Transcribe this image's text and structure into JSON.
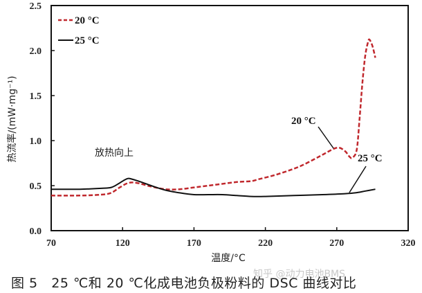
{
  "caption": "图 5   25 ℃和 20 ℃化成电池负极粉料的 DSC 曲线对比",
  "watermark": "知乎 @动力电池BMS",
  "chart_data": {
    "type": "line",
    "title": "",
    "xlabel": "温度/°C",
    "ylabel": "热流率/(mW·mg⁻¹)",
    "xlim": [
      70,
      320
    ],
    "ylim": [
      0,
      2.5
    ],
    "xticks": [
      70,
      120,
      170,
      220,
      270,
      320
    ],
    "yticks": [
      0.0,
      0.5,
      1.0,
      1.5,
      2.0,
      2.5
    ],
    "xtick_labels": [
      "70",
      "120",
      "170",
      "220",
      "270",
      "320"
    ],
    "ytick_labels": [
      "0.0",
      "0.5",
      "1.0",
      "1.5",
      "2.0",
      "2.5"
    ],
    "grid": false,
    "legend_position": "upper-left",
    "series": [
      {
        "name": "20 °C",
        "style": "dashed",
        "color": "#c0282d",
        "x": [
          70,
          90,
          105,
          112,
          118,
          124,
          130,
          140,
          150,
          160,
          170,
          180,
          190,
          200,
          210,
          215,
          225,
          235,
          245,
          255,
          262,
          268,
          272,
          276,
          279,
          281,
          284,
          286,
          288,
          290,
          292,
          293,
          295,
          297
        ],
        "y": [
          0.39,
          0.39,
          0.4,
          0.42,
          0.48,
          0.53,
          0.53,
          0.49,
          0.46,
          0.46,
          0.48,
          0.5,
          0.52,
          0.54,
          0.55,
          0.57,
          0.61,
          0.66,
          0.72,
          0.8,
          0.86,
          0.91,
          0.92,
          0.88,
          0.82,
          0.81,
          0.9,
          1.25,
          1.65,
          1.95,
          2.1,
          2.12,
          2.05,
          1.92
        ]
      },
      {
        "name": "25 °C",
        "style": "solid",
        "color": "#111111",
        "x": [
          70,
          90,
          105,
          112,
          117,
          121,
          124,
          127,
          133,
          140,
          150,
          160,
          170,
          180,
          190,
          200,
          210,
          220,
          240,
          260,
          275,
          283,
          290,
          297
        ],
        "y": [
          0.46,
          0.46,
          0.47,
          0.48,
          0.52,
          0.56,
          0.58,
          0.57,
          0.54,
          0.5,
          0.45,
          0.42,
          0.4,
          0.4,
          0.4,
          0.39,
          0.38,
          0.38,
          0.39,
          0.4,
          0.41,
          0.42,
          0.44,
          0.46
        ]
      }
    ],
    "annotations": [
      {
        "text": "放热向上",
        "x": 142,
        "y": 0.95
      },
      {
        "text": "20 °C",
        "x": 267,
        "y": 1.2,
        "arrow_to": [
          272,
          0.93
        ]
      },
      {
        "text": "25 °C",
        "x": 300,
        "y": 0.81,
        "arrow_to": [
          284,
          0.43
        ]
      }
    ]
  },
  "legend": {
    "items": [
      {
        "label": "20 °C"
      },
      {
        "label": "25 °C"
      }
    ]
  }
}
